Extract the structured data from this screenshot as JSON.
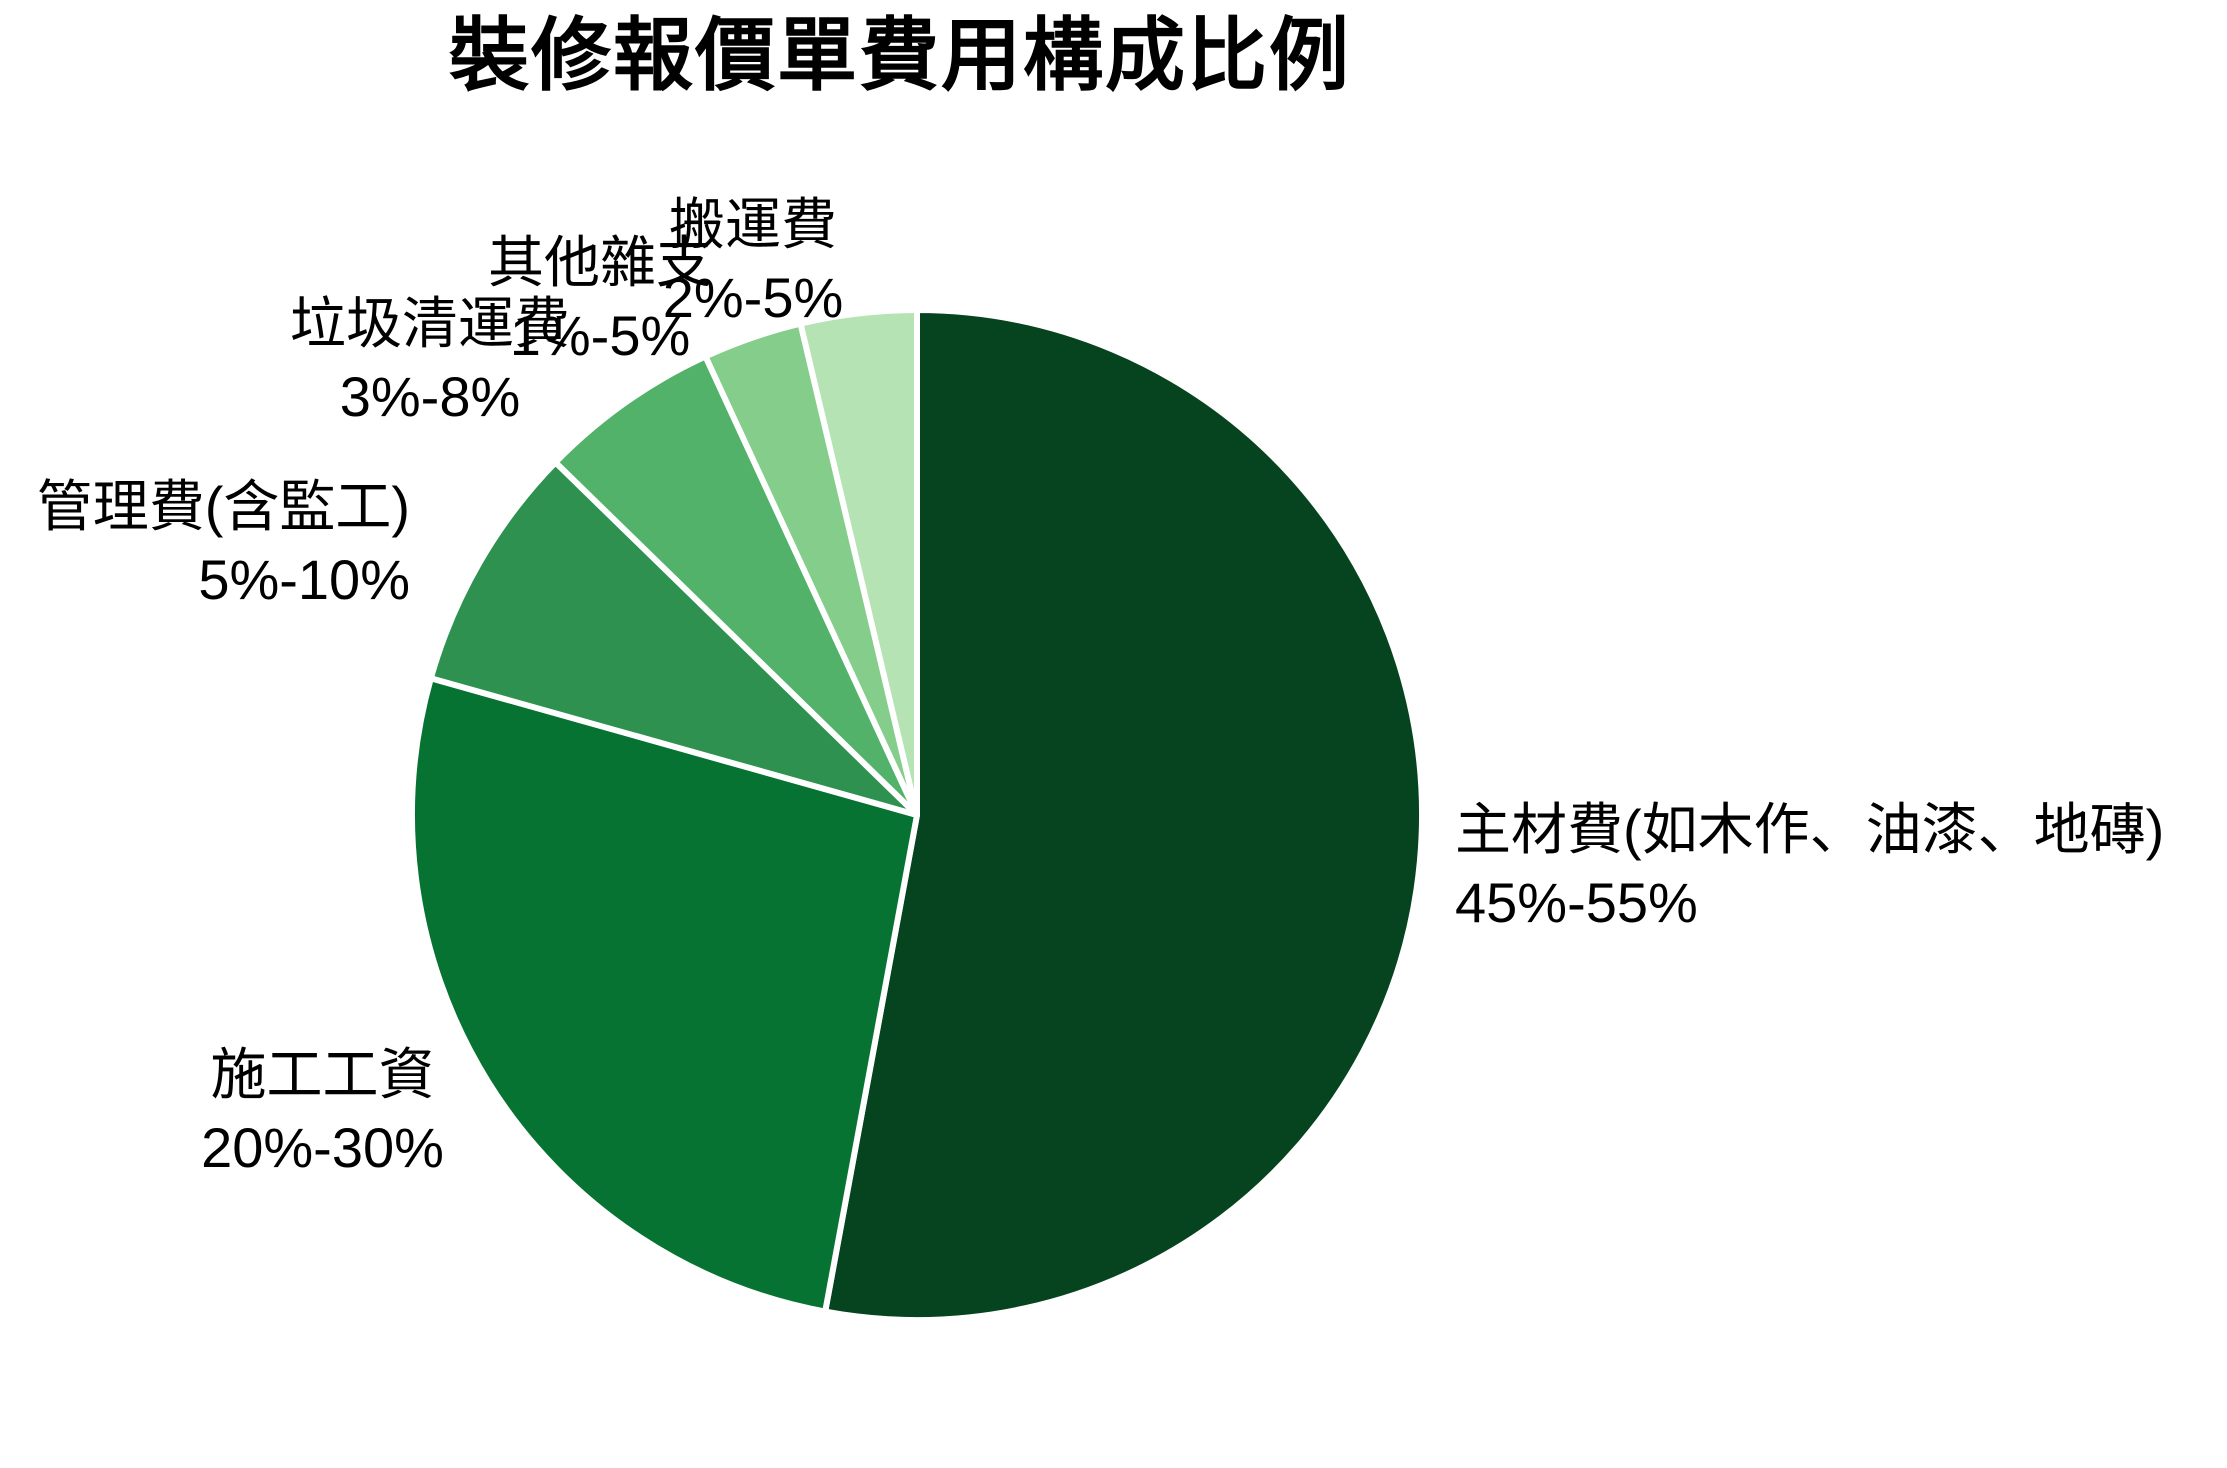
{
  "chart_data": {
    "type": "pie",
    "title": "裝修報價單費用構成比例",
    "start_angle_deg": 0,
    "direction": "clockwise",
    "legend": "none",
    "background_color": "#ffffff",
    "text_color": "#000000",
    "slice_border_color": "#ffffff",
    "slices": [
      {
        "id": "main-materials",
        "label": "主材費(如木作、油漆、地磚)",
        "range_label": "45%-55%",
        "range_min_pct": 45,
        "range_max_pct": 55,
        "value": 50,
        "color": "#05441e"
      },
      {
        "id": "construction-labor",
        "label": "施工工資",
        "range_label": "20%-30%",
        "range_min_pct": 20,
        "range_max_pct": 30,
        "value": 25,
        "color": "#077333"
      },
      {
        "id": "management-fee",
        "label": "管理費(含監工)",
        "range_label": "5%-10%",
        "range_min_pct": 5,
        "range_max_pct": 10,
        "value": 7.5,
        "color": "#2e9150"
      },
      {
        "id": "garbage-removal",
        "label": "垃圾清運費",
        "range_label": "3%-8%",
        "range_min_pct": 3,
        "range_max_pct": 8,
        "value": 5.5,
        "color": "#52b269"
      },
      {
        "id": "misc-expenses",
        "label": "其他雜支",
        "range_label": "1%-5%",
        "range_min_pct": 1,
        "range_max_pct": 5,
        "value": 3,
        "color": "#85cd8a"
      },
      {
        "id": "moving-fee",
        "label": "搬運費",
        "range_label": "2%-5%",
        "range_min_pct": 2,
        "range_max_pct": 5,
        "value": 3.5,
        "color": "#b5e3b4"
      }
    ]
  }
}
